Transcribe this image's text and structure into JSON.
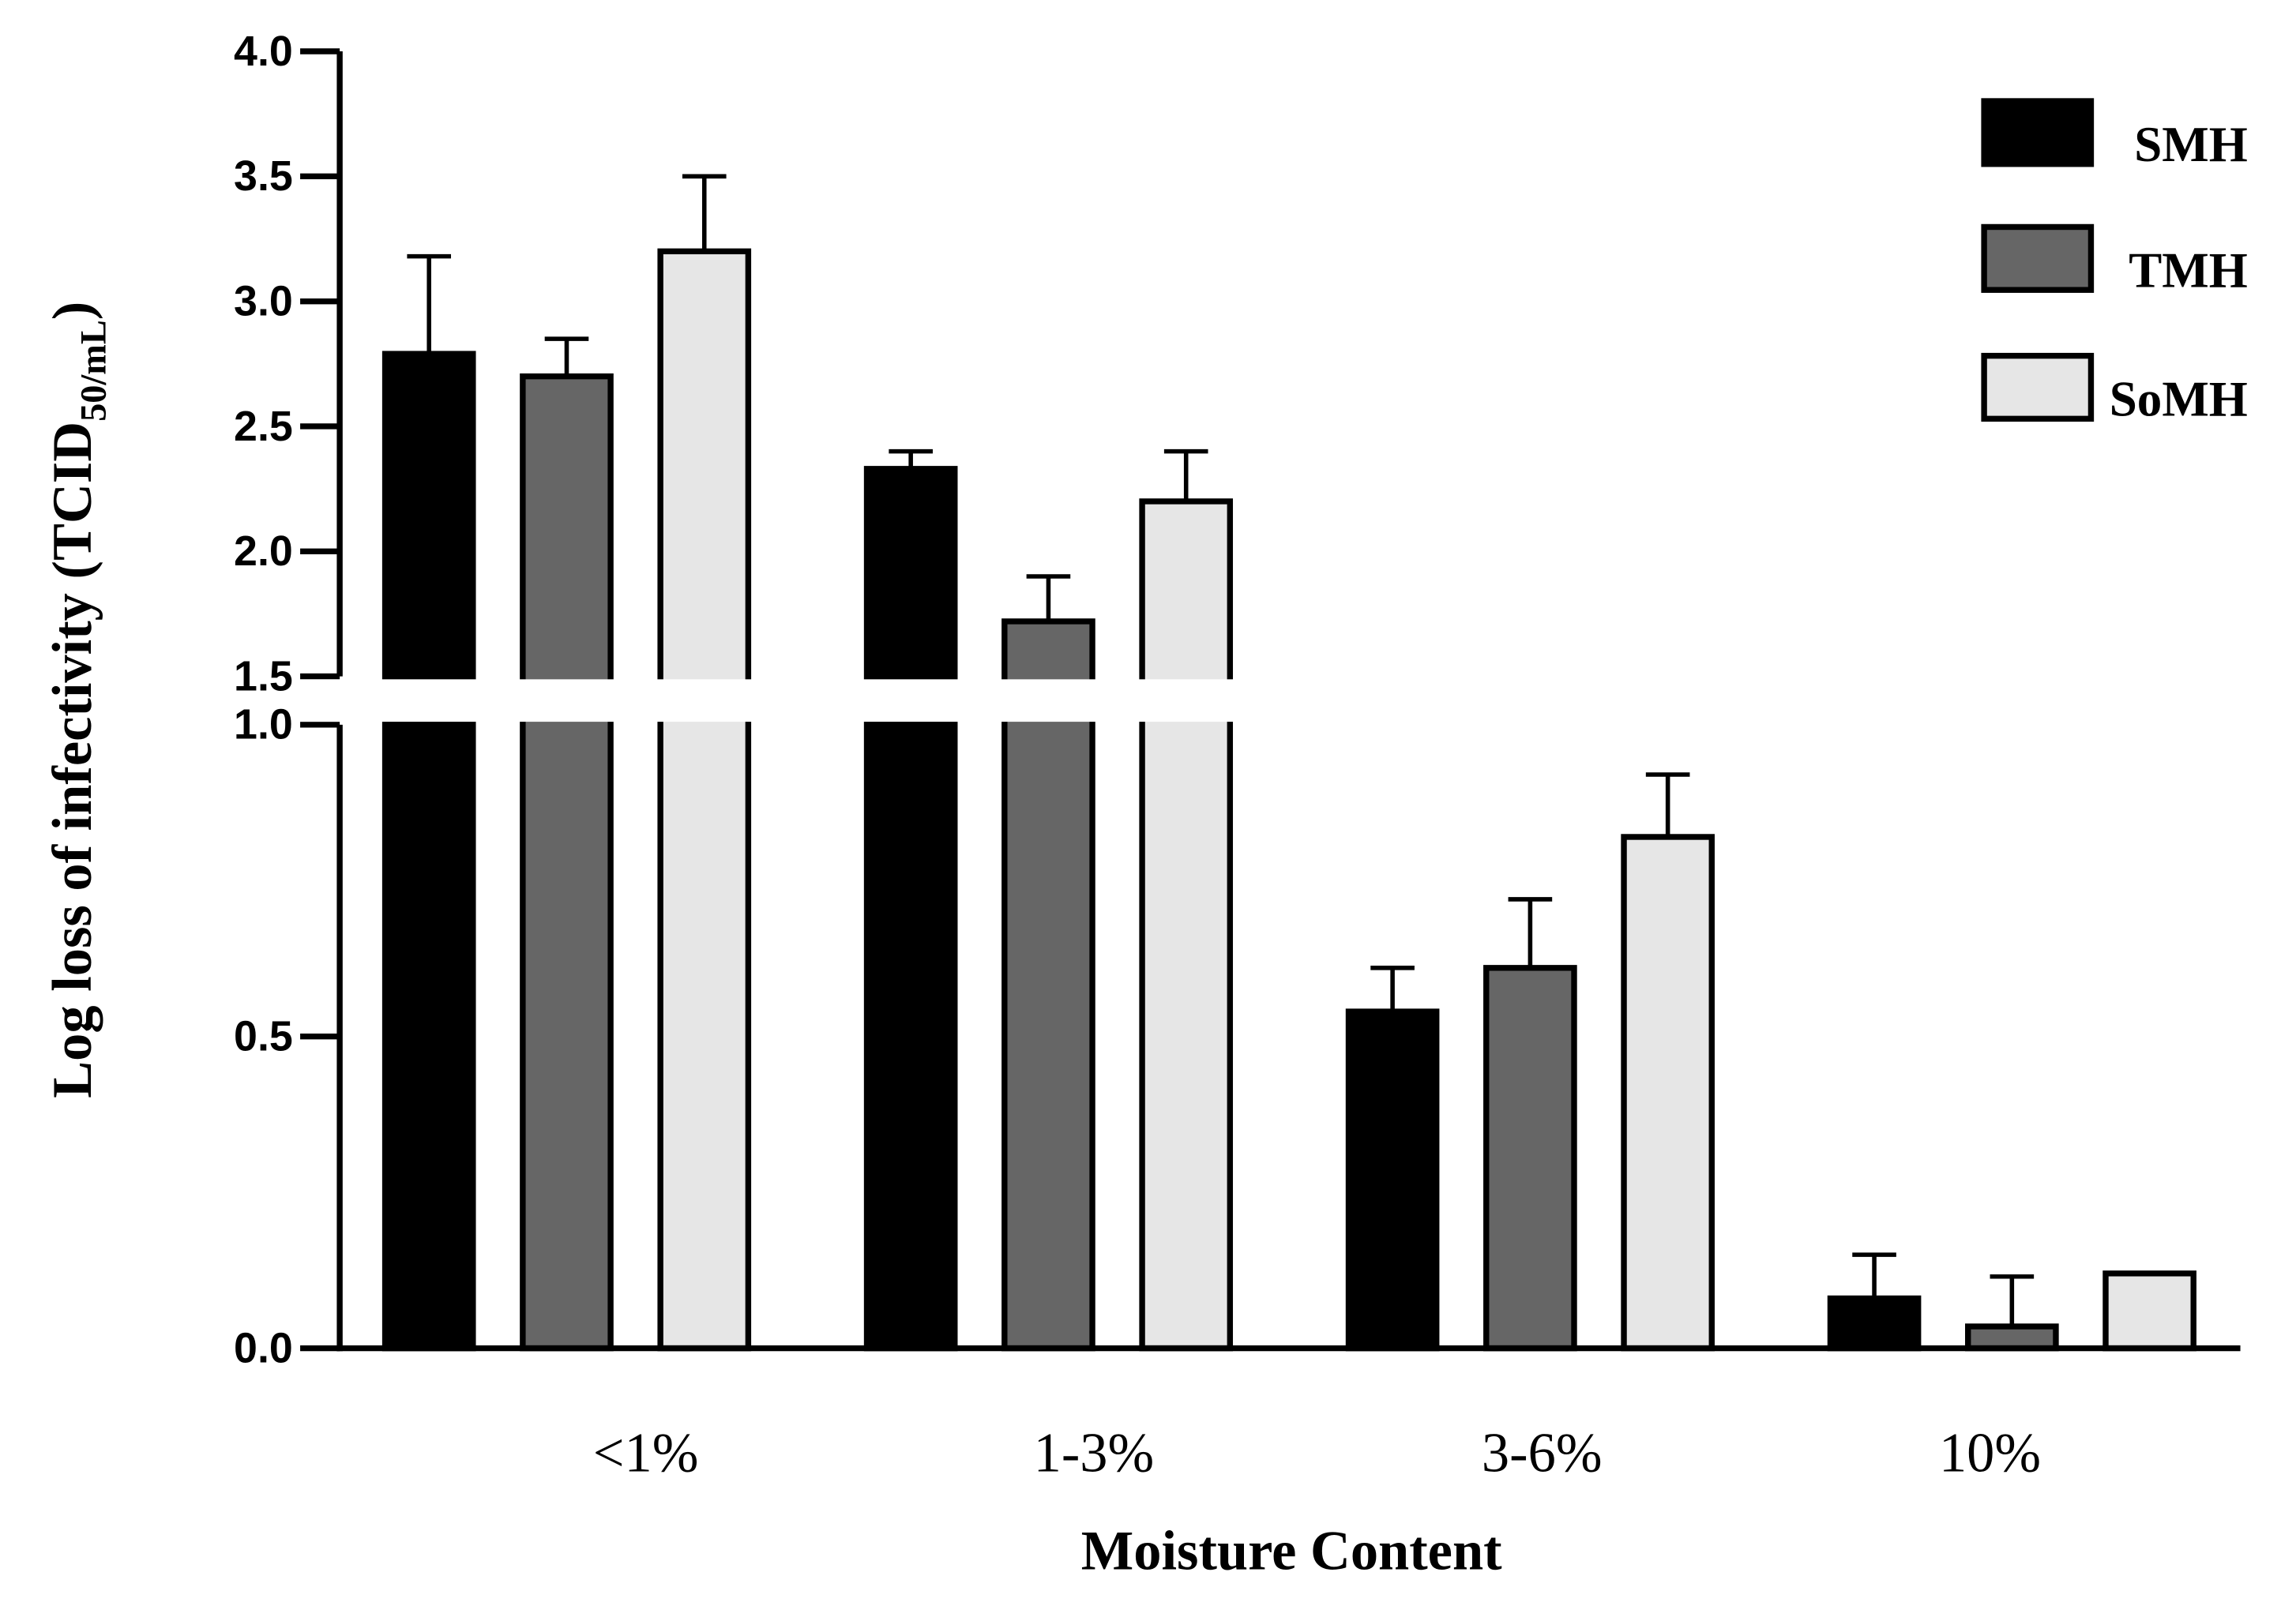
{
  "chart_data": {
    "type": "bar",
    "x_label": "Moisture Content",
    "y_label": [
      "Log loss of infectivity (TCID",
      "50/mL",
      ")"
    ],
    "categories": [
      "<1%",
      "1-3%",
      "3-6%",
      "10%"
    ],
    "series": [
      {
        "name": "SMH",
        "color": "#000000",
        "values": [
          2.79,
          2.33,
          0.54,
          0.08
        ],
        "errors": [
          0.39,
          0.07,
          0.07,
          0.07
        ]
      },
      {
        "name": "TMH",
        "color": "#666666",
        "values": [
          2.7,
          1.72,
          0.61,
          0.035
        ],
        "errors": [
          0.15,
          0.18,
          0.11,
          0.08
        ]
      },
      {
        "name": "SoMH",
        "color": "#e6e6e6",
        "values": [
          3.2,
          2.2,
          0.82,
          0.12
        ],
        "errors": [
          0.3,
          0.2,
          0.1,
          null
        ]
      }
    ],
    "ylim": [
      0,
      4.0
    ],
    "ybreak": [
      1.0,
      1.5
    ],
    "yticks": [
      {
        "value": 0,
        "label": "0.0"
      },
      0.5,
      {
        "value": 1,
        "label": "1.0"
      },
      1.5,
      {
        "value": 2,
        "label": "2.0"
      },
      2.5,
      {
        "value": 3,
        "label": "3.0"
      },
      3.5,
      {
        "value": 4,
        "label": "4.0"
      }
    ],
    "legend": "top-right"
  }
}
